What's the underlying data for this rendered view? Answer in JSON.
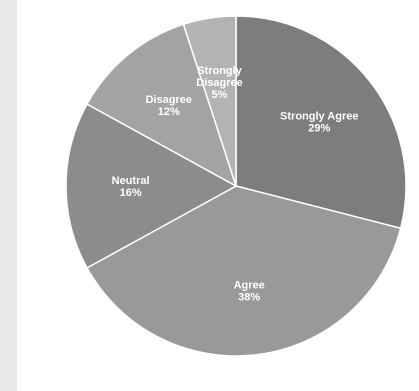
{
  "chart_data": {
    "type": "pie",
    "title": "",
    "slices": [
      {
        "label": "Strongly Agree",
        "value": 29,
        "value_text": "29%",
        "color": "#7d7d7d"
      },
      {
        "label": "Agree",
        "value": 38,
        "value_text": "38%",
        "color": "#999999"
      },
      {
        "label": "Neutral",
        "value": 16,
        "value_text": "16%",
        "color": "#8c8c8c"
      },
      {
        "label": "Disagree",
        "value": 12,
        "value_text": "12%",
        "color": "#a3a3a3"
      },
      {
        "label": "Strongly Disagree",
        "value": 5,
        "value_text": "5%",
        "color": "#b3b3b3",
        "label_lines": [
          "Strongly",
          "Disagree"
        ]
      }
    ],
    "start_at": "top",
    "direction": "clockwise",
    "legend": "none",
    "slice_border_color": "#ffffff"
  }
}
